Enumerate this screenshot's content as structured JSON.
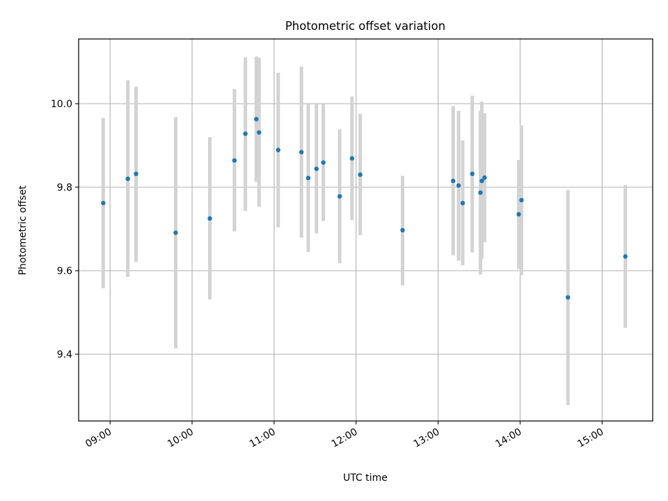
{
  "chart_data": {
    "type": "scatter",
    "title": "Photometric offset variation",
    "xlabel": "UTC time",
    "ylabel": "Photometric offset",
    "xlim": [
      "08:37",
      "15:37"
    ],
    "ylim": [
      9.24,
      10.155
    ],
    "x_ticks": [
      "09:00",
      "10:00",
      "11:00",
      "12:00",
      "13:00",
      "14:00",
      "15:00"
    ],
    "y_ticks": [
      "9.4",
      "9.6",
      "9.8",
      "10.0"
    ],
    "grid": true,
    "legend": "none",
    "marker_color": "#1f77b4",
    "errorbar_color": "#d3d3d3",
    "points": [
      {
        "x": "08:55",
        "y": 9.762,
        "y_low": 9.558,
        "y_high": 9.966
      },
      {
        "x": "09:13",
        "y": 9.82,
        "y_low": 9.585,
        "y_high": 10.056
      },
      {
        "x": "09:19",
        "y": 9.832,
        "y_low": 9.621,
        "y_high": 10.041
      },
      {
        "x": "09:48",
        "y": 9.691,
        "y_low": 9.414,
        "y_high": 9.968
      },
      {
        "x": "10:13",
        "y": 9.725,
        "y_low": 9.531,
        "y_high": 9.92
      },
      {
        "x": "10:31",
        "y": 9.864,
        "y_low": 9.694,
        "y_high": 10.035
      },
      {
        "x": "10:39",
        "y": 9.928,
        "y_low": 9.743,
        "y_high": 10.111
      },
      {
        "x": "10:47",
        "y": 9.963,
        "y_low": 9.813,
        "y_high": 10.113
      },
      {
        "x": "10:49",
        "y": 9.931,
        "y_low": 9.753,
        "y_high": 10.11
      },
      {
        "x": "11:03",
        "y": 9.889,
        "y_low": 9.704,
        "y_high": 10.074
      },
      {
        "x": "11:20",
        "y": 9.884,
        "y_low": 9.679,
        "y_high": 10.089
      },
      {
        "x": "11:25",
        "y": 9.822,
        "y_low": 9.645,
        "y_high": 9.999
      },
      {
        "x": "11:31",
        "y": 9.844,
        "y_low": 9.689,
        "y_high": 9.999
      },
      {
        "x": "11:36",
        "y": 9.859,
        "y_low": 9.719,
        "y_high": 9.999
      },
      {
        "x": "11:48",
        "y": 9.778,
        "y_low": 9.618,
        "y_high": 9.939
      },
      {
        "x": "11:57",
        "y": 9.869,
        "y_low": 9.721,
        "y_high": 10.017
      },
      {
        "x": "12:03",
        "y": 9.83,
        "y_low": 9.685,
        "y_high": 9.976
      },
      {
        "x": "12:34",
        "y": 9.697,
        "y_low": 9.565,
        "y_high": 9.827
      },
      {
        "x": "13:11",
        "y": 9.815,
        "y_low": 9.637,
        "y_high": 9.994
      },
      {
        "x": "13:15",
        "y": 9.804,
        "y_low": 9.624,
        "y_high": 9.983
      },
      {
        "x": "13:18",
        "y": 9.762,
        "y_low": 9.613,
        "y_high": 9.912
      },
      {
        "x": "13:25",
        "y": 9.832,
        "y_low": 9.644,
        "y_high": 10.019
      },
      {
        "x": "13:31",
        "y": 9.787,
        "y_low": 9.591,
        "y_high": 9.983
      },
      {
        "x": "13:32",
        "y": 9.815,
        "y_low": 9.628,
        "y_high": 10.005
      },
      {
        "x": "13:34",
        "y": 9.823,
        "y_low": 9.668,
        "y_high": 9.977
      },
      {
        "x": "13:59",
        "y": 9.735,
        "y_low": 9.604,
        "y_high": 9.865
      },
      {
        "x": "14:01",
        "y": 9.769,
        "y_low": 9.589,
        "y_high": 9.948
      },
      {
        "x": "14:35",
        "y": 9.536,
        "y_low": 9.278,
        "y_high": 9.793
      },
      {
        "x": "15:17",
        "y": 9.634,
        "y_low": 9.463,
        "y_high": 9.805
      }
    ]
  }
}
